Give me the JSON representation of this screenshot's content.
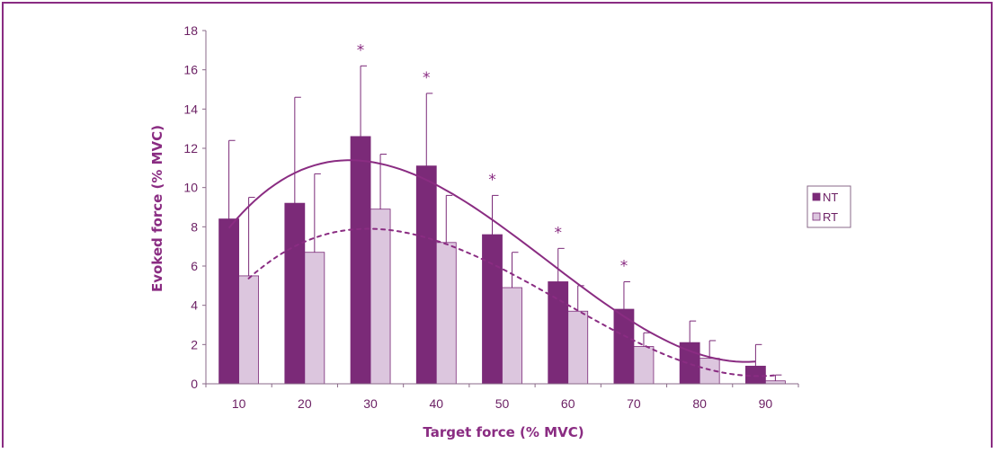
{
  "chart_data": {
    "type": "bar",
    "categories": [
      "10",
      "20",
      "30",
      "40",
      "50",
      "60",
      "70",
      "80",
      "90"
    ],
    "xlabel": "Target force (% MVC)",
    "ylabel": "Evoked force (% MVC)",
    "ylim": [
      0,
      18
    ],
    "yticks": [
      "0",
      "2",
      "4",
      "6",
      "8",
      "10",
      "12",
      "14",
      "16",
      "18"
    ],
    "grid": false,
    "legend_position": "right",
    "series": [
      {
        "name": "NT",
        "color": "#7b2a78",
        "values": [
          8.4,
          9.2,
          12.6,
          11.1,
          7.6,
          5.2,
          3.8,
          2.1,
          0.9
        ],
        "error": [
          4.0,
          5.4,
          3.6,
          3.7,
          2.0,
          1.7,
          1.4,
          1.1,
          1.1
        ]
      },
      {
        "name": "RT",
        "color": "#dcc6de",
        "values": [
          5.5,
          6.7,
          8.9,
          7.2,
          4.9,
          3.7,
          1.9,
          1.3,
          0.15
        ],
        "error": [
          4.0,
          4.0,
          2.8,
          2.4,
          1.8,
          1.3,
          0.7,
          0.9,
          0.3
        ]
      }
    ],
    "annotations": [
      {
        "category": "30",
        "text": "*"
      },
      {
        "category": "40",
        "text": "*"
      },
      {
        "category": "50",
        "text": "*"
      },
      {
        "category": "60",
        "text": "*"
      },
      {
        "category": "70",
        "text": "*"
      }
    ],
    "trendlines": [
      {
        "series": "NT",
        "style": "solid"
      },
      {
        "series": "RT",
        "style": "dotted"
      }
    ]
  }
}
